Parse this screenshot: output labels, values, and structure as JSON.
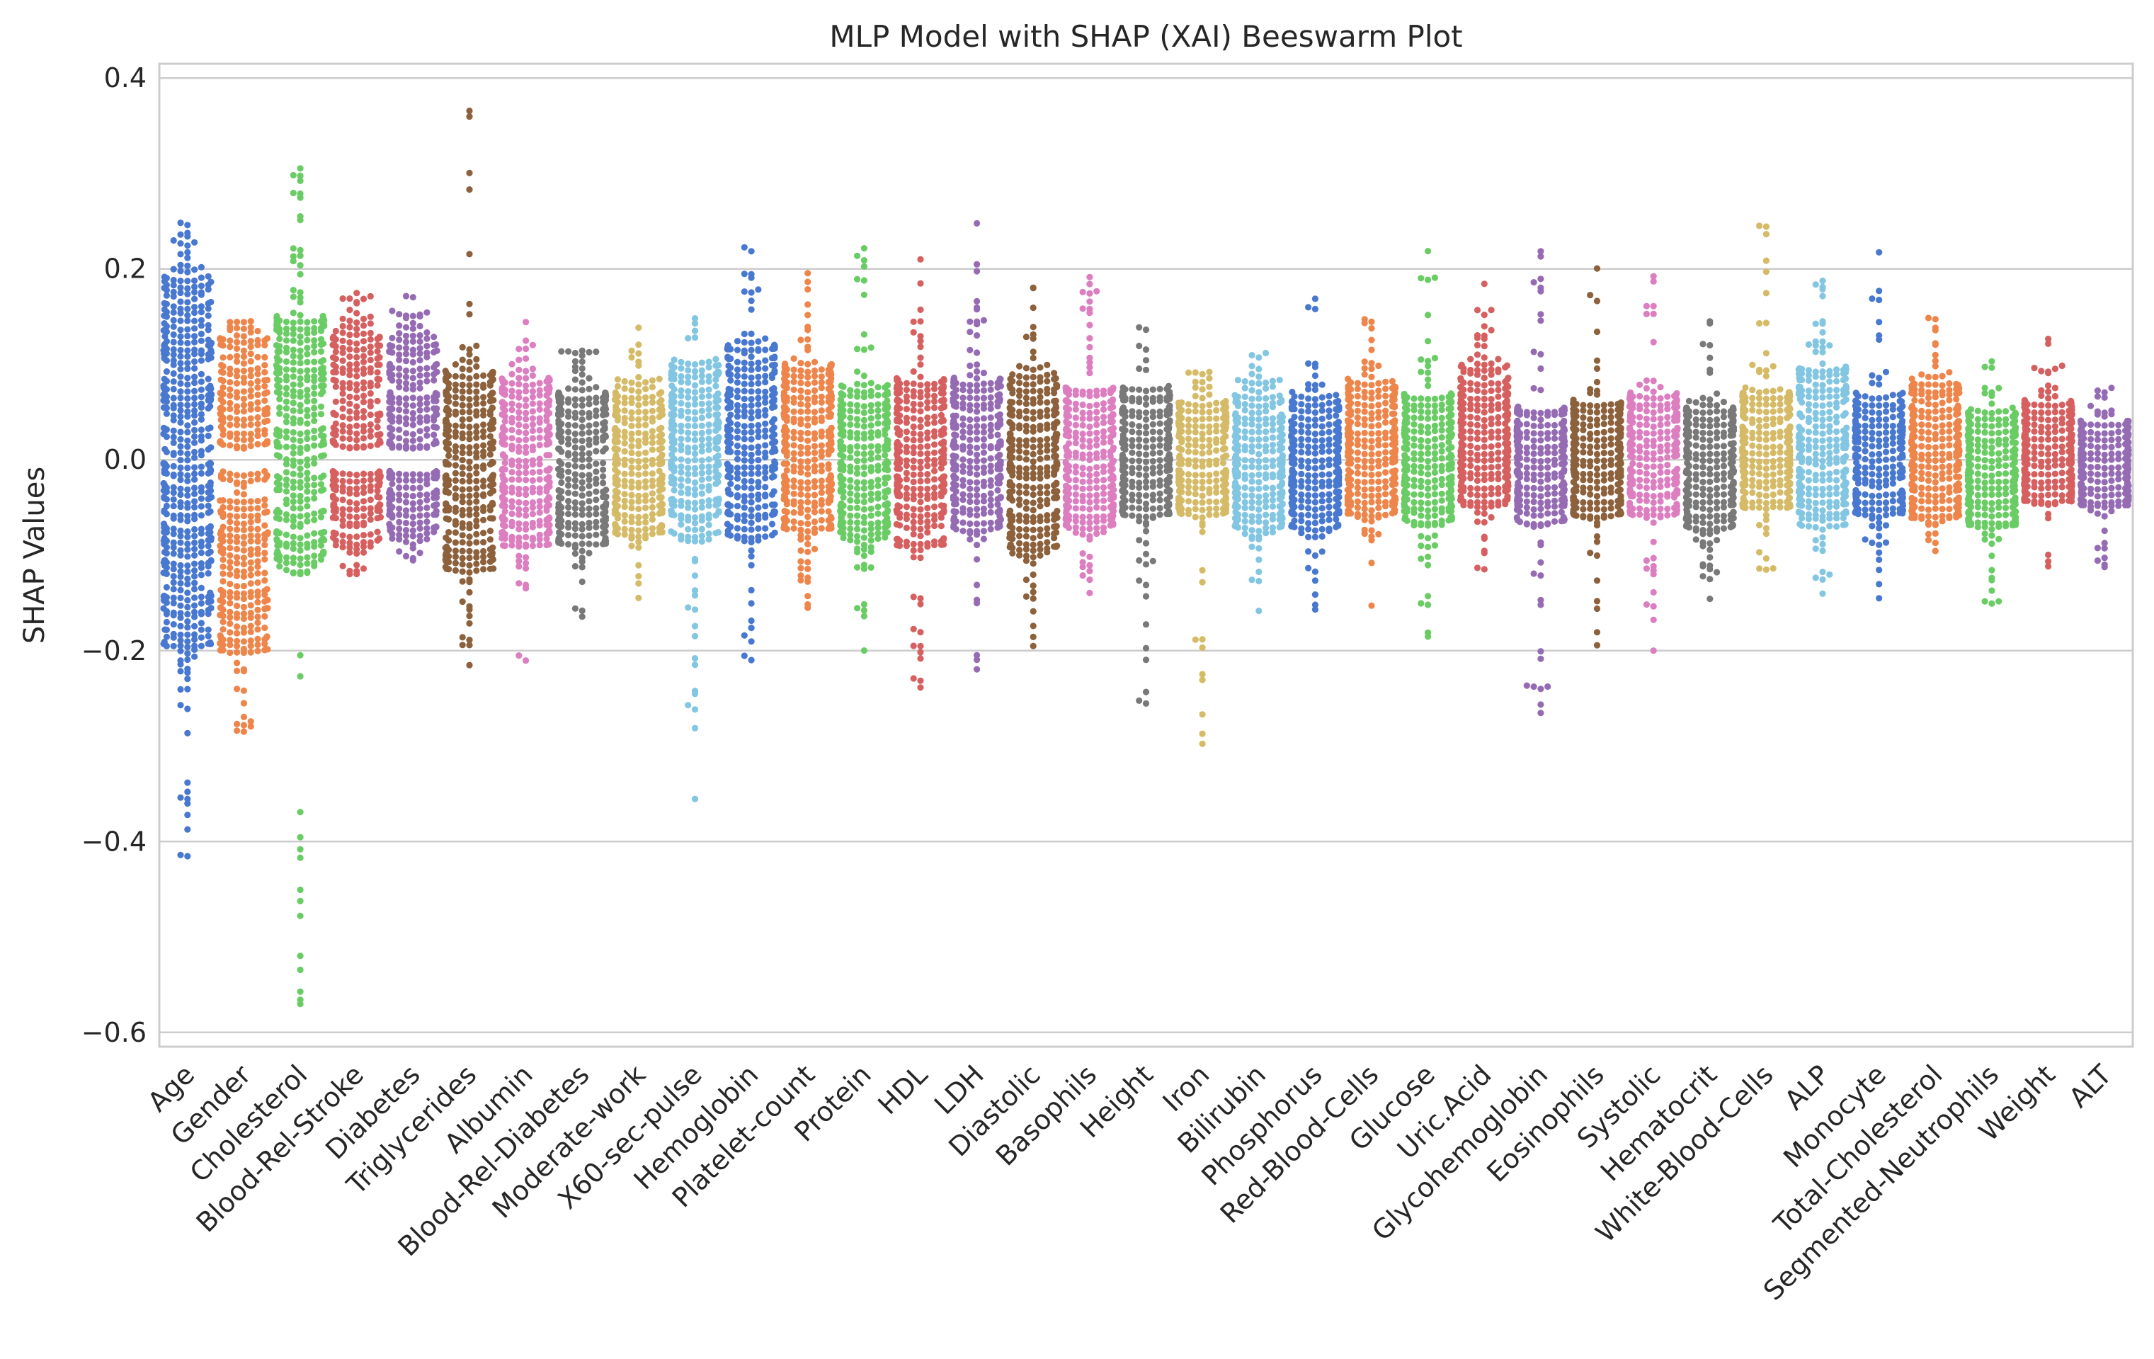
{
  "chart_data": {
    "type": "scatter",
    "subtype": "beeswarm",
    "title": "MLP Model with SHAP (XAI) Beeswarm Plot",
    "xlabel": "",
    "ylabel": "SHAP Values",
    "ylim": [
      -0.615,
      0.415
    ],
    "yticks": [
      0.4,
      0.2,
      0.0,
      -0.2,
      -0.4,
      -0.6
    ],
    "ytick_labels": [
      "0.4",
      "0.2",
      "0.0",
      "−0.2",
      "−0.4",
      "−0.6"
    ],
    "grid": "horizontal",
    "legend": "none",
    "categories": [
      "Age",
      "Gender",
      "Cholesterol",
      "Blood-Rel-Stroke",
      "Diabetes",
      "Triglycerides",
      "Albumin",
      "Blood-Rel-Diabetes",
      "Moderate-work",
      "X60-sec-pulse",
      "Hemoglobin",
      "Platelet-count",
      "Protein",
      "HDL",
      "LDH",
      "Diastolic",
      "Basophils",
      "Height",
      "Iron",
      "Bilirubin",
      "Phosphorus",
      "Red-Blood-Cells",
      "Glucose",
      "Uric.Acid",
      "Glycohemoglobin",
      "Eosinophils",
      "Systolic",
      "Hematocrit",
      "White-Blood-Cells",
      "ALP",
      "Monocyte",
      "Total-Cholesterol",
      "Segmented-Neutrophils",
      "Weight",
      "ALT"
    ],
    "series": [
      {
        "name": "Age",
        "color": "#4878d0",
        "min": -0.415,
        "max": 0.248,
        "core_min": -0.195,
        "core_max": 0.19,
        "n": 520,
        "gap": false
      },
      {
        "name": "Gender",
        "color": "#ee854a",
        "min": -0.285,
        "max": 0.145,
        "core_min": -0.2,
        "core_max": 0.125,
        "n": 380,
        "gap": true
      },
      {
        "name": "Cholesterol",
        "color": "#6acc64",
        "min": -0.57,
        "max": 0.305,
        "core_min": -0.12,
        "core_max": 0.15,
        "n": 360,
        "gap": false
      },
      {
        "name": "Blood-Rel-Stroke",
        "color": "#d65f5f",
        "min": -0.12,
        "max": 0.175,
        "core_min": -0.09,
        "core_max": 0.14,
        "n": 300,
        "gap": true
      },
      {
        "name": "Diabetes",
        "color": "#956cb4",
        "min": -0.105,
        "max": 0.172,
        "core_min": -0.08,
        "core_max": 0.13,
        "n": 300,
        "gap": true
      },
      {
        "name": "Triglycerides",
        "color": "#8c613c",
        "min": -0.215,
        "max": 0.365,
        "core_min": -0.115,
        "core_max": 0.1,
        "n": 320,
        "gap": false
      },
      {
        "name": "Albumin",
        "color": "#dc7ec0",
        "min": -0.21,
        "max": 0.145,
        "core_min": -0.09,
        "core_max": 0.085,
        "n": 300,
        "gap": false
      },
      {
        "name": "Blood-Rel-Diabetes",
        "color": "#797979",
        "min": -0.165,
        "max": 0.115,
        "core_min": -0.09,
        "core_max": 0.075,
        "n": 280,
        "gap": false
      },
      {
        "name": "Moderate-work",
        "color": "#d5bb67",
        "min": -0.145,
        "max": 0.138,
        "core_min": -0.08,
        "core_max": 0.075,
        "n": 260,
        "gap": false
      },
      {
        "name": "X60-sec-pulse",
        "color": "#82c6e2",
        "min": -0.355,
        "max": 0.148,
        "core_min": -0.085,
        "core_max": 0.1,
        "n": 300,
        "gap": false
      },
      {
        "name": "Hemoglobin",
        "color": "#4878d0",
        "min": -0.21,
        "max": 0.222,
        "core_min": -0.085,
        "core_max": 0.12,
        "n": 300,
        "gap": false
      },
      {
        "name": "Platelet-count",
        "color": "#ee854a",
        "min": -0.155,
        "max": 0.195,
        "core_min": -0.075,
        "core_max": 0.1,
        "n": 320,
        "gap": false
      },
      {
        "name": "Protein",
        "color": "#6acc64",
        "min": -0.2,
        "max": 0.222,
        "core_min": -0.085,
        "core_max": 0.08,
        "n": 290,
        "gap": false
      },
      {
        "name": "HDL",
        "color": "#d65f5f",
        "min": -0.238,
        "max": 0.21,
        "core_min": -0.09,
        "core_max": 0.085,
        "n": 290,
        "gap": false
      },
      {
        "name": "LDH",
        "color": "#956cb4",
        "min": -0.22,
        "max": 0.248,
        "core_min": -0.075,
        "core_max": 0.09,
        "n": 280,
        "gap": false
      },
      {
        "name": "Diastolic",
        "color": "#8c613c",
        "min": -0.195,
        "max": 0.18,
        "core_min": -0.1,
        "core_max": 0.09,
        "n": 300,
        "gap": false
      },
      {
        "name": "Basophils",
        "color": "#dc7ec0",
        "min": -0.14,
        "max": 0.192,
        "core_min": -0.08,
        "core_max": 0.075,
        "n": 290,
        "gap": false
      },
      {
        "name": "Height",
        "color": "#797979",
        "min": -0.255,
        "max": 0.138,
        "core_min": -0.06,
        "core_max": 0.075,
        "n": 270,
        "gap": false
      },
      {
        "name": "Iron",
        "color": "#d5bb67",
        "min": -0.298,
        "max": 0.092,
        "core_min": -0.06,
        "core_max": 0.06,
        "n": 260,
        "gap": false
      },
      {
        "name": "Bilirubin",
        "color": "#82c6e2",
        "min": -0.158,
        "max": 0.112,
        "core_min": -0.08,
        "core_max": 0.07,
        "n": 280,
        "gap": false
      },
      {
        "name": "Phosphorus",
        "color": "#4878d0",
        "min": -0.157,
        "max": 0.168,
        "core_min": -0.075,
        "core_max": 0.065,
        "n": 280,
        "gap": false
      },
      {
        "name": "Red-Blood-Cells",
        "color": "#ee854a",
        "min": -0.153,
        "max": 0.148,
        "core_min": -0.06,
        "core_max": 0.08,
        "n": 280,
        "gap": false
      },
      {
        "name": "Glucose",
        "color": "#6acc64",
        "min": -0.185,
        "max": 0.218,
        "core_min": -0.07,
        "core_max": 0.07,
        "n": 270,
        "gap": false
      },
      {
        "name": "Uric.Acid",
        "color": "#d65f5f",
        "min": -0.115,
        "max": 0.185,
        "core_min": -0.05,
        "core_max": 0.1,
        "n": 290,
        "gap": false
      },
      {
        "name": "Glycohemoglobin",
        "color": "#956cb4",
        "min": -0.265,
        "max": 0.218,
        "core_min": -0.07,
        "core_max": 0.055,
        "n": 270,
        "gap": false
      },
      {
        "name": "Eosinophils",
        "color": "#8c613c",
        "min": -0.195,
        "max": 0.2,
        "core_min": -0.06,
        "core_max": 0.06,
        "n": 260,
        "gap": false
      },
      {
        "name": "Systolic",
        "color": "#dc7ec0",
        "min": -0.2,
        "max": 0.192,
        "core_min": -0.06,
        "core_max": 0.07,
        "n": 260,
        "gap": false
      },
      {
        "name": "Hematocrit",
        "color": "#797979",
        "min": -0.145,
        "max": 0.145,
        "core_min": -0.075,
        "core_max": 0.06,
        "n": 270,
        "gap": false
      },
      {
        "name": "White-Blood-Cells",
        "color": "#d5bb67",
        "min": -0.115,
        "max": 0.245,
        "core_min": -0.05,
        "core_max": 0.075,
        "n": 260,
        "gap": false
      },
      {
        "name": "ALP",
        "color": "#82c6e2",
        "min": -0.14,
        "max": 0.188,
        "core_min": -0.07,
        "core_max": 0.1,
        "n": 280,
        "gap": false
      },
      {
        "name": "Monocyte",
        "color": "#4878d0",
        "min": -0.145,
        "max": 0.218,
        "core_min": -0.06,
        "core_max": 0.07,
        "n": 260,
        "gap": false
      },
      {
        "name": "Total-Cholesterol",
        "color": "#ee854a",
        "min": -0.095,
        "max": 0.148,
        "core_min": -0.06,
        "core_max": 0.08,
        "n": 280,
        "gap": false
      },
      {
        "name": "Segmented-Neutrophils",
        "color": "#6acc64",
        "min": -0.15,
        "max": 0.103,
        "core_min": -0.07,
        "core_max": 0.05,
        "n": 270,
        "gap": false
      },
      {
        "name": "Weight",
        "color": "#d65f5f",
        "min": -0.112,
        "max": 0.127,
        "core_min": -0.045,
        "core_max": 0.06,
        "n": 260,
        "gap": false
      },
      {
        "name": "ALT",
        "color": "#956cb4",
        "min": -0.113,
        "max": 0.075,
        "core_min": -0.05,
        "core_max": 0.04,
        "n": 250,
        "gap": false
      }
    ]
  }
}
